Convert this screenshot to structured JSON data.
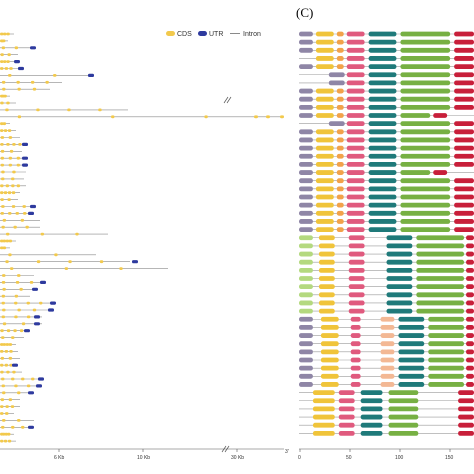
{
  "panel_c_label": "(C)",
  "legend": {
    "cds": "CDS",
    "utr": "UTR",
    "intron": "Intron"
  },
  "gene_axis": {
    "ticks": [
      "6 Kb",
      "10 Kb",
      "30 Kb"
    ],
    "end_label": "3'"
  },
  "motif_axis": {
    "ticks": [
      "0",
      "50",
      "100",
      "150"
    ]
  },
  "colors": {
    "cds": "#f2c94c",
    "utr": "#2e3a9e",
    "intron": "#8a8a8a",
    "motif_gray": "#8f86a6",
    "motif_yellow": "#f0c43a",
    "motif_orange": "#f2a24a",
    "motif_pink": "#e05a7e",
    "motif_teal": "#1f7a7a",
    "motif_green": "#77b043",
    "motif_red": "#c81f3a",
    "motif_lightgreen": "#b4d97f",
    "motif_peach": "#f3b894"
  }
}
